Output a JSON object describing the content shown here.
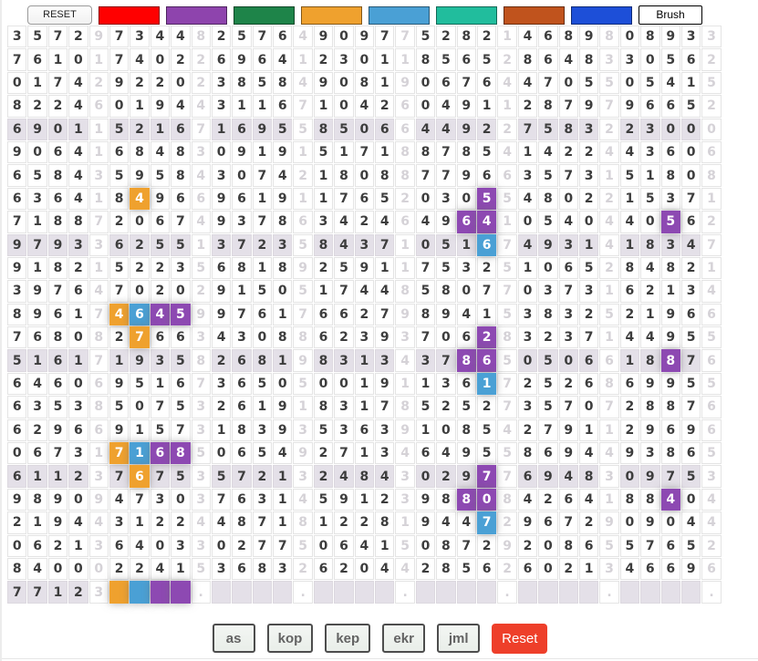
{
  "toolbar": {
    "reset_label": "RESET",
    "brush_label": "Brush",
    "swatches": [
      {
        "name": "red",
        "color": "#ff0000"
      },
      {
        "name": "purple",
        "color": "#8e44ad"
      },
      {
        "name": "green",
        "color": "#1e8449"
      },
      {
        "name": "orange",
        "color": "#efa12e"
      },
      {
        "name": "blue",
        "color": "#4aa0d5"
      },
      {
        "name": "teal",
        "color": "#21bd9d"
      },
      {
        "name": "dark-orange",
        "color": "#c0531d"
      },
      {
        "name": "royal-blue",
        "color": "#1d4fd8"
      }
    ]
  },
  "colors": {
    "paint": {
      "orange": "#efa12e",
      "blue": "#4aa0d5",
      "purple": "#8d49b2"
    },
    "highlight_row_bg": "#e4e0e8",
    "reset_button_red": "#ee3f2a"
  },
  "grid": {
    "groups_per_row": 7,
    "group_pattern": "4 digits + jml",
    "highlighted_rows": [
      5,
      10,
      15,
      20,
      25
    ],
    "rows": [
      "35729734482576490977528214689808933",
      "76101740226964123011856528648330562",
      "01742922023858490819067644705505415",
      "82246019443116710426049112879796652",
      "69011521671695585066449227583223000",
      "90641684830919151718878541422443606",
      "65843595843074218088779663573151808",
      "63641849669619117652030554802215371",
      "71887206749378634246496410540440562",
      "97933625513723584371051674931418347",
      "91821522356818925911753251065284821",
      "39764702029150517448580770373162134",
      "89617464599761766279894153832521966",
      "76808276634308862393706283237144955",
      "51617193582681983134378650506618876",
      "64606951673650500191136172526869955",
      "63538507532619183178525273570728876",
      "62966915731839353639108542791129696",
      "06731716850654927134649558694493865",
      "61123767535721324843029776948309753",
      "98909473037631459123988084264188404",
      "21944312244871812281944729672909044",
      "06213640330277506415087292086557652",
      "84000224153683262044285626021346696",
      "77123    .    .    .    .    .    ."
    ],
    "colored_cells": [
      {
        "row": 8,
        "col": 7,
        "color": "orange"
      },
      {
        "row": 8,
        "col": 24,
        "color": "purple"
      },
      {
        "row": 9,
        "col": 23,
        "color": "purple"
      },
      {
        "row": 9,
        "col": 24,
        "color": "purple"
      },
      {
        "row": 9,
        "col": 33,
        "color": "purple"
      },
      {
        "row": 10,
        "col": 24,
        "color": "blue"
      },
      {
        "row": 13,
        "col": 6,
        "color": "orange"
      },
      {
        "row": 13,
        "col": 7,
        "color": "blue"
      },
      {
        "row": 13,
        "col": 8,
        "color": "purple"
      },
      {
        "row": 13,
        "col": 9,
        "color": "purple"
      },
      {
        "row": 14,
        "col": 7,
        "color": "orange"
      },
      {
        "row": 14,
        "col": 24,
        "color": "purple"
      },
      {
        "row": 15,
        "col": 23,
        "color": "purple"
      },
      {
        "row": 15,
        "col": 24,
        "color": "purple"
      },
      {
        "row": 15,
        "col": 33,
        "color": "purple"
      },
      {
        "row": 16,
        "col": 24,
        "color": "blue"
      },
      {
        "row": 19,
        "col": 6,
        "color": "orange"
      },
      {
        "row": 19,
        "col": 7,
        "color": "blue"
      },
      {
        "row": 19,
        "col": 8,
        "color": "purple"
      },
      {
        "row": 19,
        "col": 9,
        "color": "purple"
      },
      {
        "row": 20,
        "col": 7,
        "color": "orange"
      },
      {
        "row": 20,
        "col": 24,
        "color": "purple"
      },
      {
        "row": 21,
        "col": 23,
        "color": "purple"
      },
      {
        "row": 21,
        "col": 24,
        "color": "purple"
      },
      {
        "row": 21,
        "col": 33,
        "color": "purple"
      },
      {
        "row": 22,
        "col": 24,
        "color": "blue"
      },
      {
        "row": 25,
        "col": 6,
        "color": "orange"
      },
      {
        "row": 25,
        "col": 7,
        "color": "blue"
      },
      {
        "row": 25,
        "col": 8,
        "color": "purple"
      },
      {
        "row": 25,
        "col": 9,
        "color": "purple"
      }
    ]
  },
  "footer": {
    "buttons": [
      "as",
      "kop",
      "kep",
      "ekr",
      "jml"
    ],
    "reset_label": "Reset"
  }
}
